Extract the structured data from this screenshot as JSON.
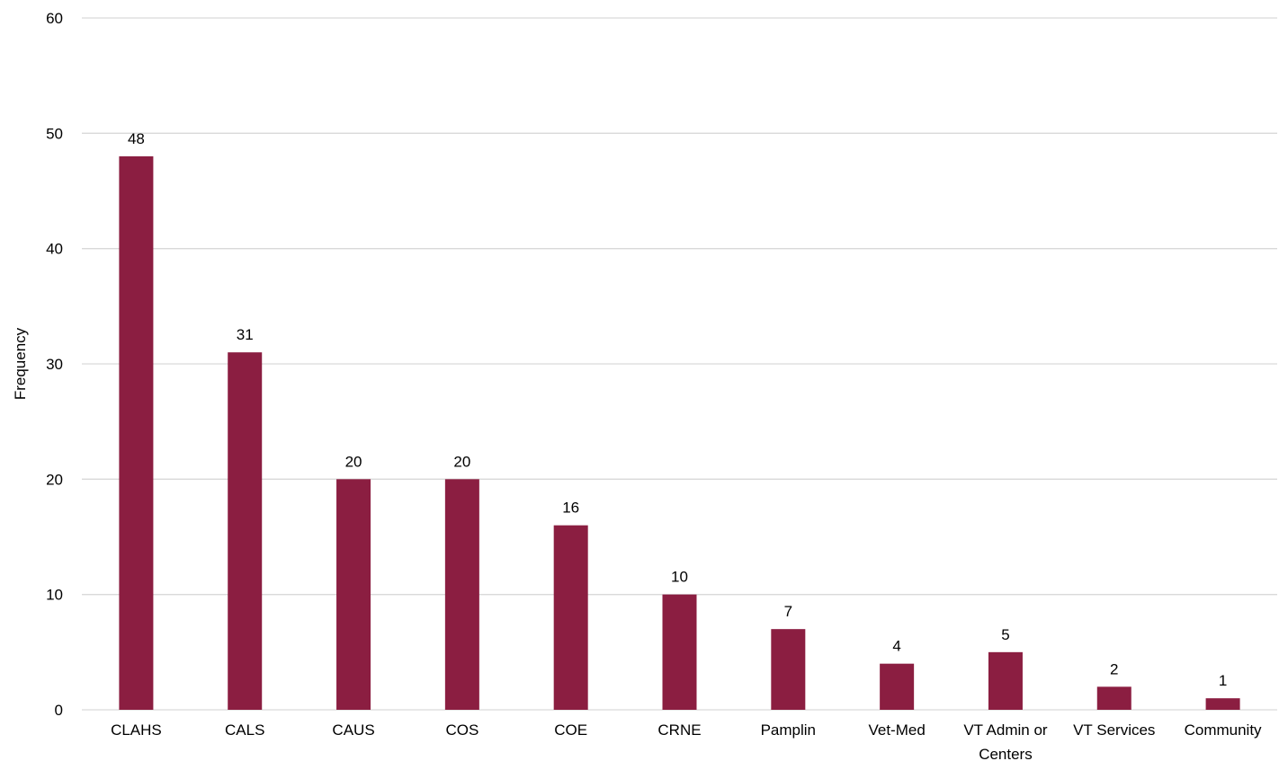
{
  "chart_data": {
    "type": "bar",
    "title": "",
    "xlabel": "",
    "ylabel": "Frequency",
    "ylim": [
      0,
      60
    ],
    "yticks": [
      0,
      10,
      20,
      30,
      40,
      50,
      60
    ],
    "grid": true,
    "legend": "none",
    "categories": [
      "CLAHS",
      "CALS",
      "CAUS",
      "COS",
      "COE",
      "CRNE",
      "Pamplin",
      "Vet-Med",
      "VT Admin or Centers",
      "VT Services",
      "Community"
    ],
    "values": [
      48,
      31,
      20,
      20,
      16,
      10,
      7,
      4,
      5,
      2,
      1
    ],
    "bar_color": "#8B1E41",
    "grid_color": "#D9D9D9"
  }
}
